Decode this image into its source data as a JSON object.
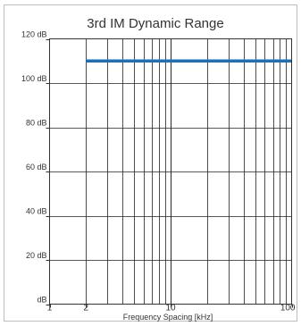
{
  "chart_data": {
    "type": "line",
    "title": "3rd IM Dynamic Range",
    "xlabel": "Frequency Spacing [kHz]",
    "ylabel": "",
    "x_scale": "log",
    "xlim": [
      1,
      100
    ],
    "ylim": [
      0,
      120
    ],
    "x_ticks": [
      {
        "value": 1,
        "label": "1"
      },
      {
        "value": 2,
        "label": "2"
      },
      {
        "value": 10,
        "label": "10"
      },
      {
        "value": 100,
        "label": "100"
      }
    ],
    "y_ticks": [
      {
        "value": 0,
        "label": "dB"
      },
      {
        "value": 20,
        "label": "20 dB"
      },
      {
        "value": 40,
        "label": "40 dB"
      },
      {
        "value": 60,
        "label": "60 dB"
      },
      {
        "value": 80,
        "label": "80 dB"
      },
      {
        "value": 100,
        "label": "100 dB"
      },
      {
        "value": 120,
        "label": "120 dB"
      }
    ],
    "grid": true,
    "series": [
      {
        "color": "#1f6fb2",
        "points": [
          {
            "x": 2,
            "y": 110
          },
          {
            "x": 100,
            "y": 110
          }
        ]
      }
    ]
  }
}
